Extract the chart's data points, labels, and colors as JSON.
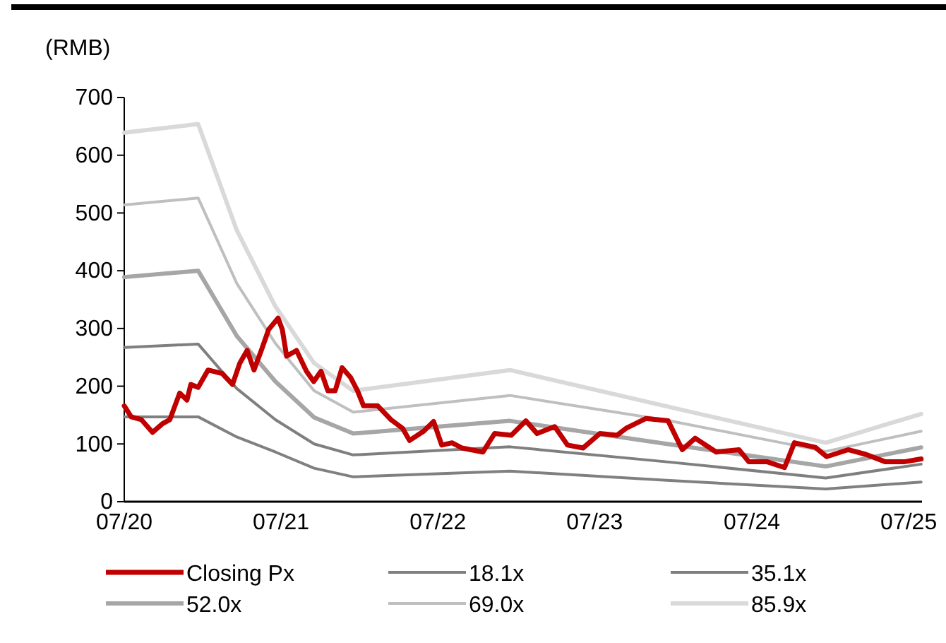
{
  "chart_data": {
    "type": "line",
    "ylabel": "(RMB)",
    "xlim": [
      "2020-07-01",
      "2025-08-01"
    ],
    "xticks": [
      {
        "value": "2020-07-01",
        "label": "07/20"
      },
      {
        "value": "2021-07-01",
        "label": "07/21"
      },
      {
        "value": "2022-07-01",
        "label": "07/22"
      },
      {
        "value": "2023-07-01",
        "label": "07/23"
      },
      {
        "value": "2024-07-01",
        "label": "07/24"
      },
      {
        "value": "2025-07-01",
        "label": "07/25"
      }
    ],
    "ylim": [
      0,
      700
    ],
    "yticks": [
      0,
      100,
      200,
      300,
      400,
      500,
      600,
      700
    ],
    "grid": false,
    "legend": "bottom",
    "line_style": "solid",
    "marker": "none",
    "series": [
      {
        "name": "Closing Px",
        "color": "#c00000",
        "x": [
          "2020-07-01",
          "2020-07-17",
          "2020-08-10",
          "2020-09-05",
          "2020-09-28",
          "2020-10-15",
          "2020-11-07",
          "2020-11-24",
          "2020-12-03",
          "2020-12-20",
          "2021-01-12",
          "2021-02-14",
          "2021-03-10",
          "2021-03-27",
          "2021-04-13",
          "2021-04-29",
          "2021-05-16",
          "2021-06-02",
          "2021-06-24",
          "2021-07-04",
          "2021-07-14",
          "2021-08-06",
          "2021-08-29",
          "2021-09-15",
          "2021-10-02",
          "2021-10-18",
          "2021-11-04",
          "2021-11-20",
          "2021-12-10",
          "2021-12-26",
          "2022-01-09",
          "2022-02-11",
          "2022-03-14",
          "2022-04-10",
          "2022-04-26",
          "2022-05-29",
          "2022-06-21",
          "2022-07-10",
          "2022-08-03",
          "2022-08-26",
          "2022-10-14",
          "2022-11-10",
          "2022-12-19",
          "2023-01-22",
          "2023-02-17",
          "2023-03-30",
          "2023-04-29",
          "2023-06-04",
          "2023-07-13",
          "2023-08-22",
          "2023-09-12",
          "2023-10-28",
          "2023-12-19",
          "2024-01-21",
          "2024-02-20",
          "2024-04-09",
          "2024-06-01",
          "2024-06-24",
          "2024-08-06",
          "2024-09-15",
          "2024-10-08",
          "2024-11-26",
          "2024-12-22",
          "2025-02-10",
          "2025-03-23",
          "2025-05-08",
          "2025-06-20",
          "2025-07-30"
        ],
        "values": [
          166,
          147,
          142,
          120,
          135,
          142,
          188,
          176,
          203,
          198,
          228,
          222,
          203,
          240,
          262,
          228,
          262,
          298,
          318,
          298,
          252,
          262,
          226,
          208,
          226,
          192,
          192,
          232,
          215,
          192,
          166,
          166,
          142,
          127,
          106,
          122,
          139,
          98,
          102,
          93,
          86,
          118,
          115,
          140,
          118,
          130,
          98,
          93,
          118,
          115,
          127,
          144,
          140,
          90,
          110,
          86,
          90,
          69,
          69,
          59,
          102,
          94,
          78,
          90,
          82,
          69,
          69,
          74
        ]
      },
      {
        "name": "18.1x",
        "color": "#808080",
        "x": [
          "2020-07-01",
          "2020-12-20",
          "2021-03-20",
          "2021-06-18",
          "2021-09-16",
          "2021-12-16",
          "2022-12-16",
          "2023-12-16",
          "2024-12-20",
          "2025-07-30"
        ],
        "values": [
          147,
          147,
          112,
          86,
          58,
          43,
          53,
          37,
          22,
          34
        ]
      },
      {
        "name": "35.1x",
        "color": "#7f7f7f",
        "x": [
          "2020-07-01",
          "2020-12-20",
          "2021-03-20",
          "2021-06-18",
          "2021-09-16",
          "2021-12-16",
          "2022-12-16",
          "2023-12-16",
          "2024-12-20",
          "2025-07-30"
        ],
        "values": [
          267,
          273,
          196,
          142,
          100,
          81,
          95,
          69,
          41,
          65
        ]
      },
      {
        "name": "52.0x",
        "color": "#a6a6a6",
        "x": [
          "2020-07-01",
          "2020-12-20",
          "2021-03-20",
          "2021-06-18",
          "2021-09-16",
          "2021-12-16",
          "2022-12-16",
          "2023-12-16",
          "2024-12-20",
          "2025-07-30"
        ],
        "values": [
          389,
          400,
          287,
          208,
          146,
          118,
          140,
          100,
          61,
          94
        ]
      },
      {
        "name": "69.0x",
        "color": "#bfbfbf",
        "x": [
          "2020-07-01",
          "2020-12-20",
          "2021-03-20",
          "2021-06-18",
          "2021-09-16",
          "2021-12-16",
          "2022-12-16",
          "2023-12-16",
          "2024-12-20",
          "2025-07-30"
        ],
        "values": [
          514,
          526,
          378,
          274,
          192,
          155,
          184,
          141,
          87,
          122
        ]
      },
      {
        "name": "85.9x",
        "color": "#d9d9d9",
        "x": [
          "2020-07-01",
          "2020-12-20",
          "2021-03-20",
          "2021-06-18",
          "2021-09-16",
          "2021-12-16",
          "2022-12-16",
          "2023-12-16",
          "2024-12-20",
          "2025-07-30"
        ],
        "values": [
          639,
          654,
          470,
          338,
          240,
          192,
          228,
          165,
          102,
          152
        ]
      }
    ]
  }
}
